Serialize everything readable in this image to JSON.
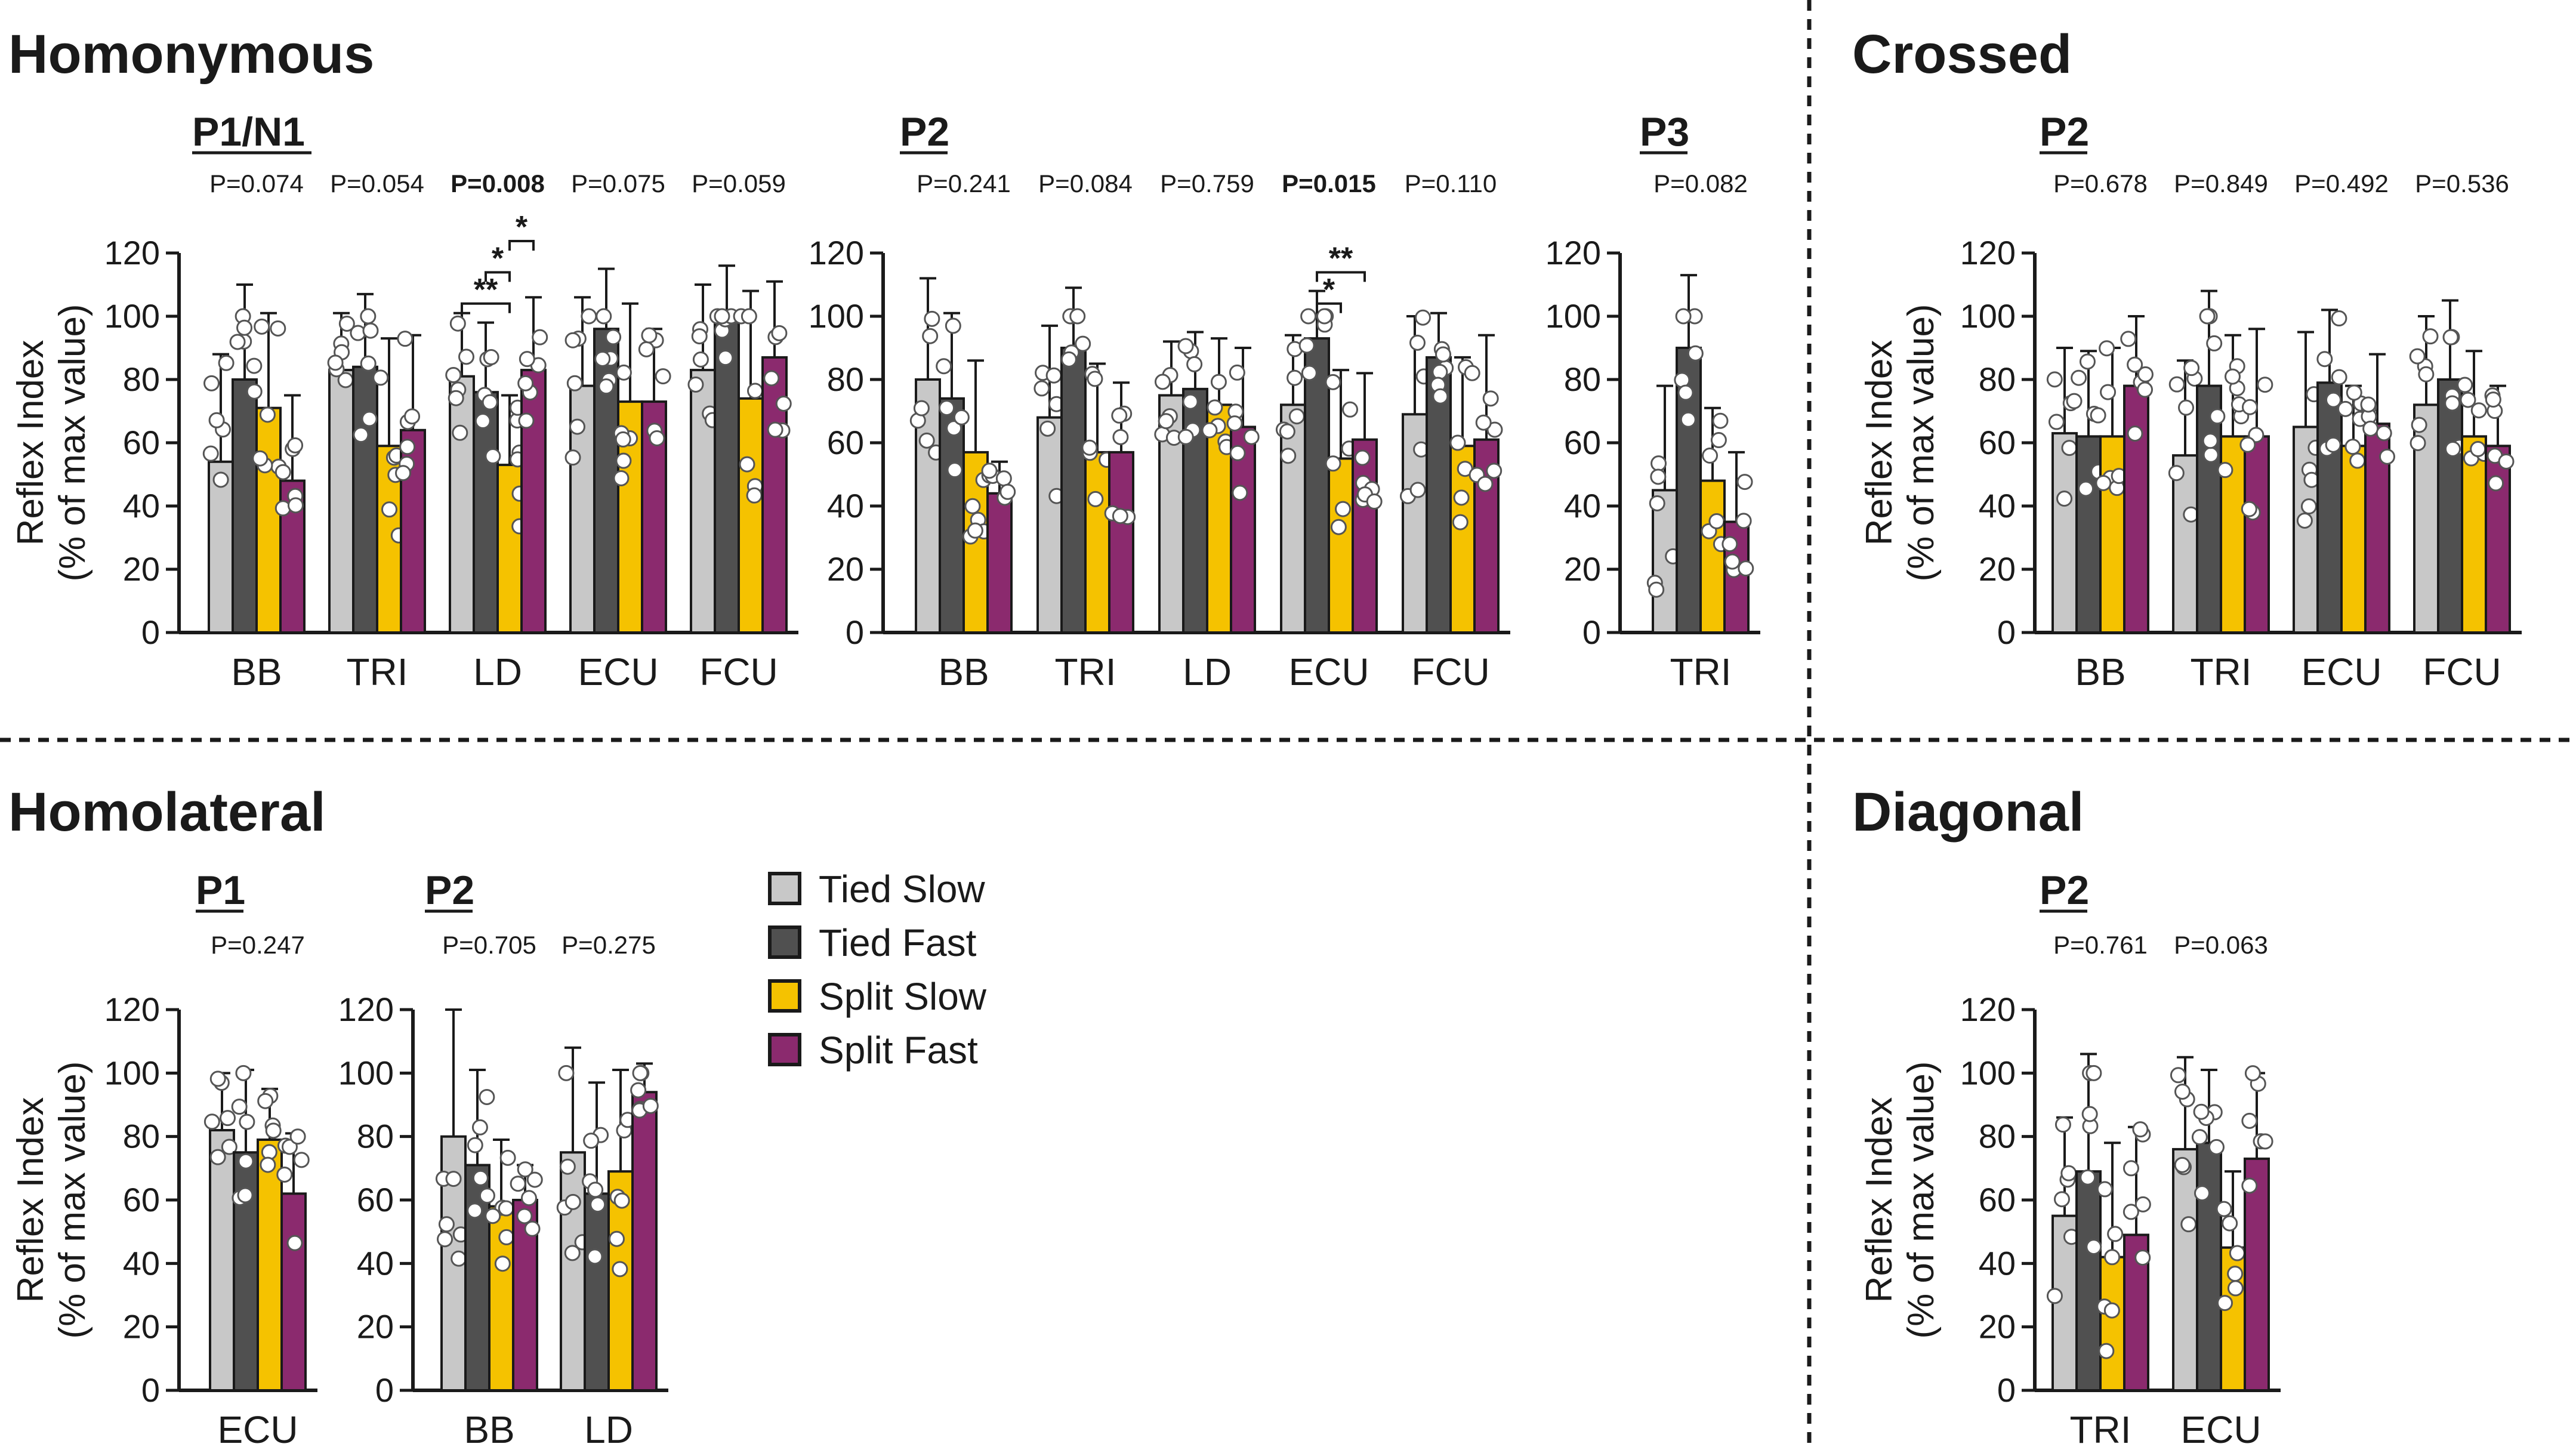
{
  "colors": {
    "tied_slow": "#c8c8c8",
    "tied_fast": "#505050",
    "split_slow": "#f5c200",
    "split_fast": "#8b2a6e",
    "axis": "#1a1a1a"
  },
  "sections": {
    "homonymous": "Homonymous",
    "crossed": "Crossed",
    "homolateral": "Homolateral",
    "diagonal": "Diagonal"
  },
  "legend": [
    "Tied Slow",
    "Tied Fast",
    "Split Slow",
    "Split Fast"
  ],
  "ylabel_line1": "Reflex Index",
  "ylabel_line2": "(% of max value)",
  "chart_data": [
    {
      "id": "homonymous_p1n1",
      "section": "Homonymous",
      "title": "P1/N1",
      "type": "bar",
      "ylim": [
        0,
        120
      ],
      "yticks": [
        "0",
        "20",
        "40",
        "60",
        "80",
        "100",
        "120"
      ],
      "categories": [
        "BB",
        "TRI",
        "LD",
        "ECU",
        "FCU"
      ],
      "pvalues": [
        "P=0.074",
        "P=0.054",
        "P=0.008",
        "P=0.075",
        "P=0.059"
      ],
      "significant": [
        false,
        false,
        true,
        false,
        false
      ],
      "series": [
        {
          "name": "Tied Slow",
          "values": [
            54,
            83,
            81,
            78,
            83
          ],
          "errors": [
            34,
            18,
            20,
            28,
            27
          ]
        },
        {
          "name": "Tied Fast",
          "values": [
            80,
            84,
            76,
            96,
            101
          ],
          "errors": [
            30,
            23,
            22,
            19,
            15
          ]
        },
        {
          "name": "Split Slow",
          "values": [
            71,
            59,
            53,
            73,
            74
          ],
          "errors": [
            30,
            34,
            22,
            31,
            34
          ]
        },
        {
          "name": "Split Fast",
          "values": [
            48,
            64,
            83,
            73,
            87
          ],
          "errors": [
            27,
            30,
            23,
            23,
            24
          ]
        }
      ],
      "annotations": [
        {
          "category": "LD",
          "from": "Tied Slow",
          "to": "Split Slow",
          "label": "**"
        },
        {
          "category": "LD",
          "from": "Tied Fast",
          "to": "Split Slow",
          "label": "*"
        },
        {
          "category": "LD",
          "from": "Split Slow",
          "to": "Split Fast",
          "label": "*"
        }
      ]
    },
    {
      "id": "homonymous_p2",
      "section": "Homonymous",
      "title": "P2",
      "type": "bar",
      "ylim": [
        0,
        120
      ],
      "yticks": [
        "0",
        "20",
        "40",
        "60",
        "80",
        "100",
        "120"
      ],
      "categories": [
        "BB",
        "TRI",
        "LD",
        "ECU",
        "FCU"
      ],
      "pvalues": [
        "P=0.241",
        "P=0.084",
        "P=0.759",
        "P=0.015",
        "P=0.110"
      ],
      "significant": [
        false,
        false,
        false,
        true,
        false
      ],
      "series": [
        {
          "name": "Tied Slow",
          "values": [
            80,
            68,
            75,
            72,
            69
          ],
          "errors": [
            32,
            29,
            17,
            22,
            31
          ]
        },
        {
          "name": "Tied Fast",
          "values": [
            74,
            90,
            77,
            93,
            87
          ],
          "errors": [
            27,
            19,
            18,
            15,
            14
          ]
        },
        {
          "name": "Split Slow",
          "values": [
            57,
            57,
            72,
            55,
            59
          ],
          "errors": [
            29,
            28,
            21,
            28,
            28
          ]
        },
        {
          "name": "Split Fast",
          "values": [
            44,
            57,
            65,
            61,
            61
          ],
          "errors": [
            10,
            22,
            25,
            21,
            33
          ]
        }
      ],
      "annotations": [
        {
          "category": "ECU",
          "from": "Tied Fast",
          "to": "Split Slow",
          "label": "*"
        },
        {
          "category": "ECU",
          "from": "Tied Fast",
          "to": "Split Fast",
          "label": "**"
        }
      ]
    },
    {
      "id": "homonymous_p3",
      "section": "Homonymous",
      "title": "P3",
      "type": "bar",
      "ylim": [
        0,
        120
      ],
      "yticks": [
        "0",
        "20",
        "40",
        "60",
        "80",
        "100",
        "120"
      ],
      "categories": [
        "TRI"
      ],
      "pvalues": [
        "P=0.082"
      ],
      "significant": [
        false
      ],
      "series": [
        {
          "name": "Tied Slow",
          "values": [
            45
          ],
          "errors": [
            33
          ]
        },
        {
          "name": "Tied Fast",
          "values": [
            90
          ],
          "errors": [
            23
          ]
        },
        {
          "name": "Split Slow",
          "values": [
            48
          ],
          "errors": [
            23
          ]
        },
        {
          "name": "Split Fast",
          "values": [
            35
          ],
          "errors": [
            22
          ]
        }
      ]
    },
    {
      "id": "crossed_p2",
      "section": "Crossed",
      "title": "P2",
      "type": "bar",
      "ylim": [
        0,
        120
      ],
      "yticks": [
        "0",
        "20",
        "40",
        "60",
        "80",
        "100",
        "120"
      ],
      "categories": [
        "BB",
        "TRI",
        "ECU",
        "FCU"
      ],
      "pvalues": [
        "P=0.678",
        "P=0.849",
        "P=0.492",
        "P=0.536"
      ],
      "significant": [
        false,
        false,
        false,
        false
      ],
      "series": [
        {
          "name": "Tied Slow",
          "values": [
            63,
            56,
            65,
            72
          ],
          "errors": [
            27,
            30,
            30,
            28
          ]
        },
        {
          "name": "Tied Fast",
          "values": [
            62,
            78,
            79,
            80
          ],
          "errors": [
            27,
            30,
            23,
            25
          ]
        },
        {
          "name": "Split Slow",
          "values": [
            62,
            62,
            59,
            62
          ],
          "errors": [
            28,
            32,
            19,
            27
          ]
        },
        {
          "name": "Split Fast",
          "values": [
            78,
            62,
            66,
            59
          ],
          "errors": [
            22,
            34,
            22,
            19
          ]
        }
      ]
    },
    {
      "id": "homolateral_p1",
      "section": "Homolateral",
      "title": "P1",
      "type": "bar",
      "ylim": [
        0,
        120
      ],
      "yticks": [
        "0",
        "20",
        "40",
        "60",
        "80",
        "100",
        "120"
      ],
      "categories": [
        "ECU"
      ],
      "pvalues": [
        "P=0.247"
      ],
      "significant": [
        false
      ],
      "series": [
        {
          "name": "Tied Slow",
          "values": [
            82
          ],
          "errors": [
            18
          ]
        },
        {
          "name": "Tied Fast",
          "values": [
            75
          ],
          "errors": [
            26
          ]
        },
        {
          "name": "Split Slow",
          "values": [
            79
          ],
          "errors": [
            16
          ]
        },
        {
          "name": "Split Fast",
          "values": [
            62
          ],
          "errors": [
            19
          ]
        }
      ]
    },
    {
      "id": "homolateral_p2",
      "section": "Homolateral",
      "title": "P2",
      "type": "bar",
      "ylim": [
        0,
        120
      ],
      "yticks": [
        "0",
        "20",
        "40",
        "60",
        "80",
        "100",
        "120"
      ],
      "categories": [
        "BB",
        "LD"
      ],
      "pvalues": [
        "P=0.705",
        "P=0.275"
      ],
      "significant": [
        false,
        false
      ],
      "series": [
        {
          "name": "Tied Slow",
          "values": [
            80,
            75
          ],
          "errors": [
            40,
            33
          ]
        },
        {
          "name": "Tied Fast",
          "values": [
            71,
            62
          ],
          "errors": [
            30,
            35
          ]
        },
        {
          "name": "Split Slow",
          "values": [
            58,
            69
          ],
          "errors": [
            21,
            32
          ]
        },
        {
          "name": "Split Fast",
          "values": [
            60,
            94
          ],
          "errors": [
            11,
            9
          ]
        }
      ]
    },
    {
      "id": "diagonal_p2",
      "section": "Diagonal",
      "title": "P2",
      "type": "bar",
      "ylim": [
        0,
        120
      ],
      "yticks": [
        "0",
        "20",
        "40",
        "60",
        "80",
        "100",
        "120"
      ],
      "categories": [
        "TRI",
        "ECU"
      ],
      "pvalues": [
        "P=0.761",
        "P=0.063"
      ],
      "significant": [
        false,
        false
      ],
      "series": [
        {
          "name": "Tied Slow",
          "values": [
            55,
            76
          ],
          "errors": [
            31,
            29
          ]
        },
        {
          "name": "Tied Fast",
          "values": [
            69,
            78
          ],
          "errors": [
            37,
            23
          ]
        },
        {
          "name": "Split Slow",
          "values": [
            42,
            45
          ],
          "errors": [
            36,
            24
          ]
        },
        {
          "name": "Split Fast",
          "values": [
            49,
            73
          ],
          "errors": [
            34,
            27
          ]
        }
      ]
    }
  ]
}
